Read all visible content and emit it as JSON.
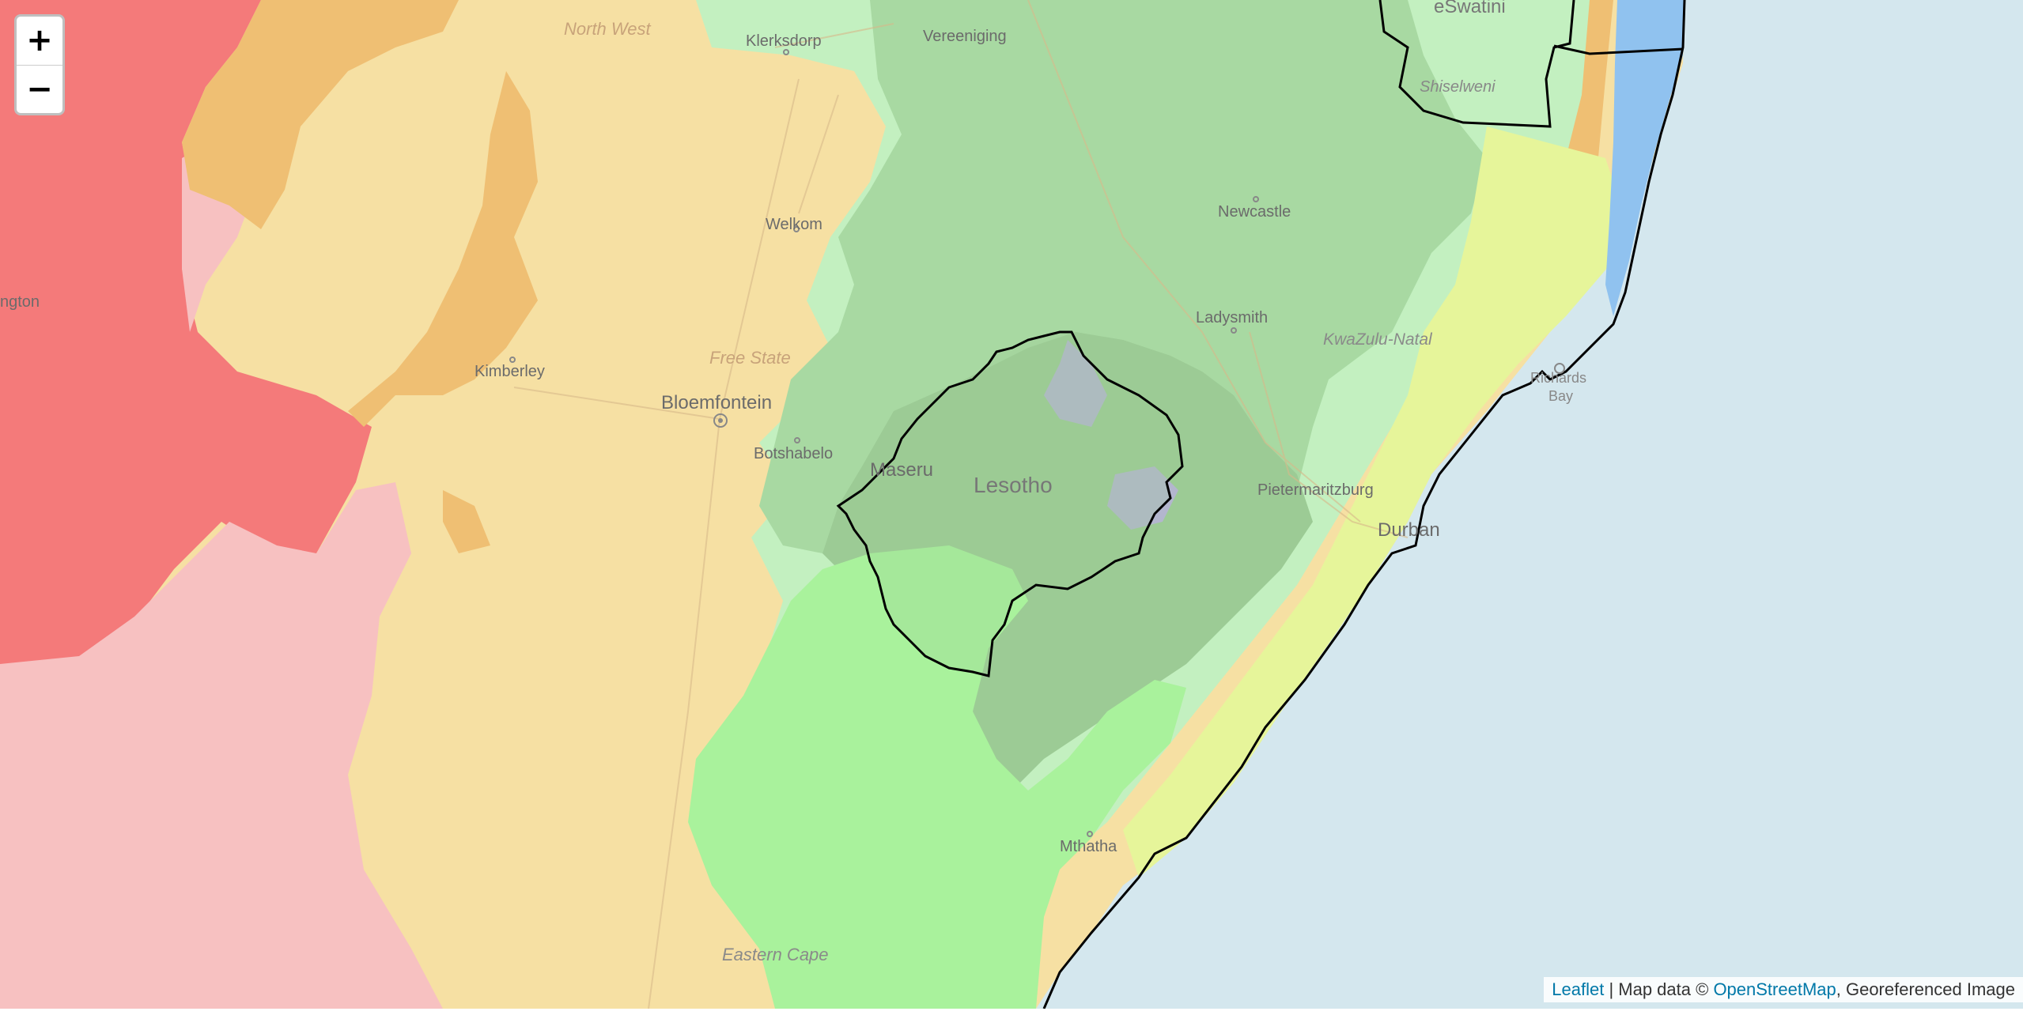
{
  "map": {
    "zoom_in_label": "+",
    "zoom_out_label": "−",
    "labels": {
      "north_west": "North West",
      "klerksdorp": "Klerksdorp",
      "vereeniging": "Vereeniging",
      "eswatini": "eSwatini",
      "shiselweni": "Shiselweni",
      "welkom": "Welkom",
      "newcastle": "Newcastle",
      "upington": "ngton",
      "ladysmith": "Ladysmith",
      "kwazulu_natal": "KwaZulu-Natal",
      "free_state": "Free State",
      "kimberley": "Kimberley",
      "bloemfontein": "Bloemfontein",
      "richards_bay_1": "Richards",
      "richards_bay_2": "Bay",
      "botshabelo": "Botshabelo",
      "maseru": "Maseru",
      "lesotho": "Lesotho",
      "pietermaritzburg": "Pietermaritzburg",
      "durban": "Durban",
      "mthatha": "Mthatha",
      "eastern_cape": "Eastern Cape"
    }
  },
  "attribution": {
    "leaflet": "Leaflet",
    "sep": " | Map data © ",
    "osm": "OpenStreetMap",
    "suffix": ", Georeferenced Image"
  },
  "colors": {
    "ocean": "#d4e7ee",
    "red": "#f47a7a",
    "pink": "#f7c1c1",
    "orange": "#efbf73",
    "tan": "#f6e0a3",
    "light_green": "#c3f0c0",
    "mid_green": "#a8d9a2",
    "dark_green": "#9ccb95",
    "bright_green": "#a9f29c",
    "yellow_green": "#e6f59a",
    "lavender": "#b7b3d8",
    "blue": "#90c2ef",
    "border": "#000000"
  }
}
